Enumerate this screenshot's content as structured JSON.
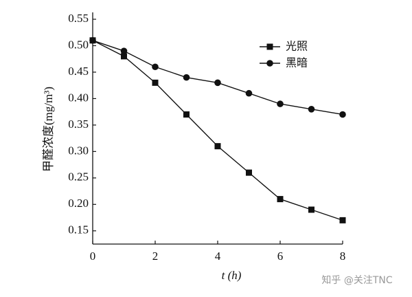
{
  "chart_data": {
    "type": "line",
    "y_label": "甲醛浓度(mg/m³)",
    "x_label": "t (h)",
    "x": [
      0,
      1,
      2,
      3,
      4,
      5,
      6,
      7,
      8
    ],
    "series": [
      {
        "name": "光照",
        "color": "#111111",
        "marker": "square",
        "values": [
          0.51,
          0.48,
          0.43,
          0.37,
          0.31,
          0.26,
          0.21,
          0.19,
          0.17
        ]
      },
      {
        "name": "黑暗",
        "color": "#111111",
        "marker": "circle",
        "values": [
          0.51,
          0.49,
          0.46,
          0.44,
          0.43,
          0.41,
          0.39,
          0.38,
          0.37
        ]
      }
    ],
    "xlim": [
      0,
      8
    ],
    "xticks": [
      0,
      2,
      4,
      6,
      8
    ],
    "ylim": [
      0.125,
      0.563
    ],
    "yticks": [
      0.15,
      {
        "value": 0.2,
        "label": "0.20"
      },
      0.25,
      {
        "value": 0.3,
        "label": "0.30"
      },
      0.35,
      {
        "value": 0.4,
        "label": "0.40"
      },
      0.45,
      {
        "value": 0.5,
        "label": "0.50"
      },
      0.55
    ],
    "legend": "top-right",
    "watermark": "知乎 @关注TNC"
  }
}
